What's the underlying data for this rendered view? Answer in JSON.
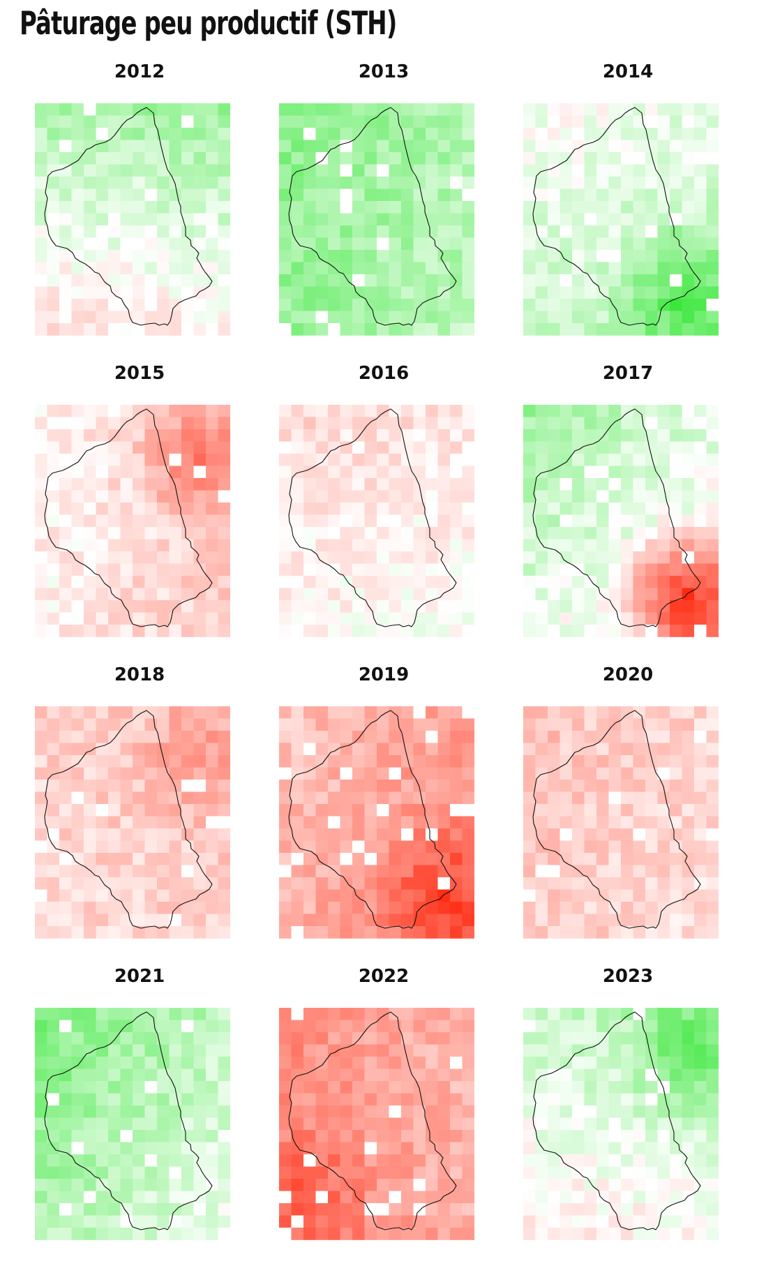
{
  "title": "Pâturage peu productif (STH)",
  "chart_data": {
    "type": "heatmap",
    "title": "Pâturage peu productif (STH)",
    "grid_size": [
      16,
      19
    ],
    "color_scale": {
      "negative": "#ff2a10",
      "neutral": "#ffffff",
      "positive": "#00e000"
    },
    "value_range": [
      -1,
      1
    ],
    "panels": [
      {
        "year": "2012",
        "overall": 0.12,
        "gradient": {
          "north": 0.25,
          "south": -0.2,
          "west": 0.05,
          "east": 0.1
        },
        "hotspots": []
      },
      {
        "year": "2013",
        "overall": 0.35,
        "gradient": {
          "north": 0.15,
          "south": 0.1,
          "west": 0.1,
          "east": -0.05
        },
        "hotspots": []
      },
      {
        "year": "2014",
        "overall": 0.15,
        "gradient": {
          "north": -0.05,
          "south": 0.15,
          "west": 0.1,
          "east": 0.2
        },
        "hotspots": [
          {
            "area": "south-east",
            "value": 0.65
          }
        ]
      },
      {
        "year": "2015",
        "overall": -0.15,
        "gradient": {
          "north": 0.0,
          "south": 0.0,
          "west": 0.05,
          "east": -0.15
        },
        "hotspots": [
          {
            "area": "north-east",
            "value": -0.55
          }
        ]
      },
      {
        "year": "2016",
        "overall": -0.08,
        "gradient": {
          "north": -0.1,
          "south": 0.05,
          "west": -0.05,
          "east": 0.0
        },
        "hotspots": []
      },
      {
        "year": "2017",
        "overall": 0.1,
        "gradient": {
          "north": 0.15,
          "south": -0.15,
          "west": 0.15,
          "east": -0.1
        },
        "hotspots": [
          {
            "area": "south-east",
            "value": -0.8
          }
        ]
      },
      {
        "year": "2018",
        "overall": -0.22,
        "gradient": {
          "north": -0.05,
          "south": 0.0,
          "west": 0.0,
          "east": -0.05
        },
        "hotspots": [
          {
            "area": "north-east",
            "value": -0.45
          }
        ]
      },
      {
        "year": "2019",
        "overall": -0.42,
        "gradient": {
          "north": 0.0,
          "south": -0.1,
          "west": 0.05,
          "east": -0.15
        },
        "hotspots": [
          {
            "area": "south-east",
            "value": -0.85
          }
        ]
      },
      {
        "year": "2020",
        "overall": -0.22,
        "gradient": {
          "north": -0.05,
          "south": 0.0,
          "west": -0.05,
          "east": 0.05
        },
        "hotspots": []
      },
      {
        "year": "2021",
        "overall": 0.28,
        "gradient": {
          "north": 0.15,
          "south": -0.05,
          "west": 0.15,
          "east": -0.1
        },
        "hotspots": []
      },
      {
        "year": "2022",
        "overall": -0.45,
        "gradient": {
          "north": 0.0,
          "south": -0.05,
          "west": -0.1,
          "east": 0.1
        },
        "hotspots": [
          {
            "area": "south-west",
            "value": -0.7
          }
        ]
      },
      {
        "year": "2023",
        "overall": 0.1,
        "gradient": {
          "north": 0.15,
          "south": -0.15,
          "west": 0.0,
          "east": 0.1
        },
        "hotspots": [
          {
            "area": "north-east",
            "value": 0.5
          }
        ]
      }
    ]
  }
}
